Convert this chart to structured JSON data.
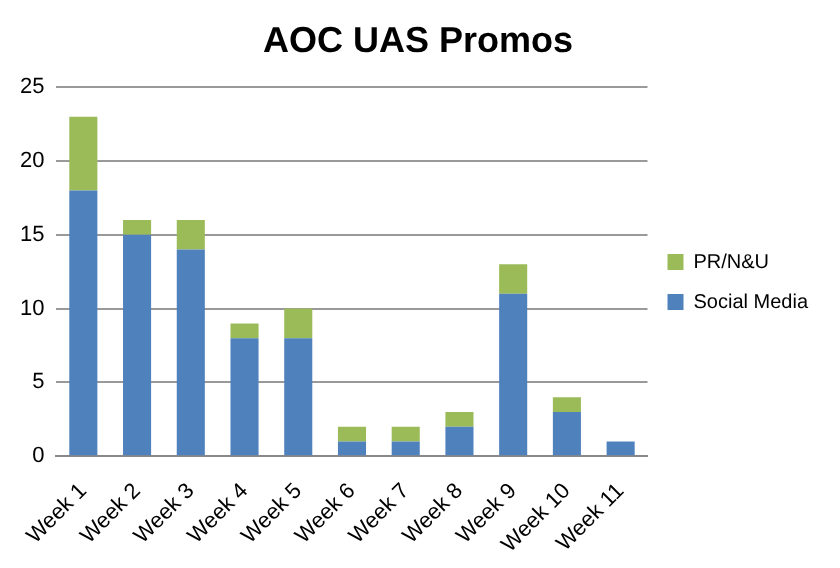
{
  "chart_data": {
    "type": "bar",
    "title": "AOC UAS Promos",
    "stacked": true,
    "categories": [
      "Week 1",
      "Week 2",
      "Week 3",
      "Week 4",
      "Week 5",
      "Week 6",
      "Week 7",
      "Week 8",
      "Week 9",
      "Week 10",
      "Week 11"
    ],
    "series": [
      {
        "name": "Social Media",
        "color": "#4f81bd",
        "values": [
          18,
          15,
          14,
          8,
          8,
          1,
          1,
          2,
          11,
          3,
          1
        ]
      },
      {
        "name": "PR/N&U",
        "color": "#9bbb59",
        "values": [
          5,
          1,
          2,
          1,
          2,
          1,
          1,
          1,
          2,
          1,
          0
        ]
      }
    ],
    "ylim": [
      0,
      25
    ],
    "yticks": [
      0,
      5,
      10,
      15,
      20,
      25
    ],
    "grid": "y",
    "legend": "right"
  }
}
